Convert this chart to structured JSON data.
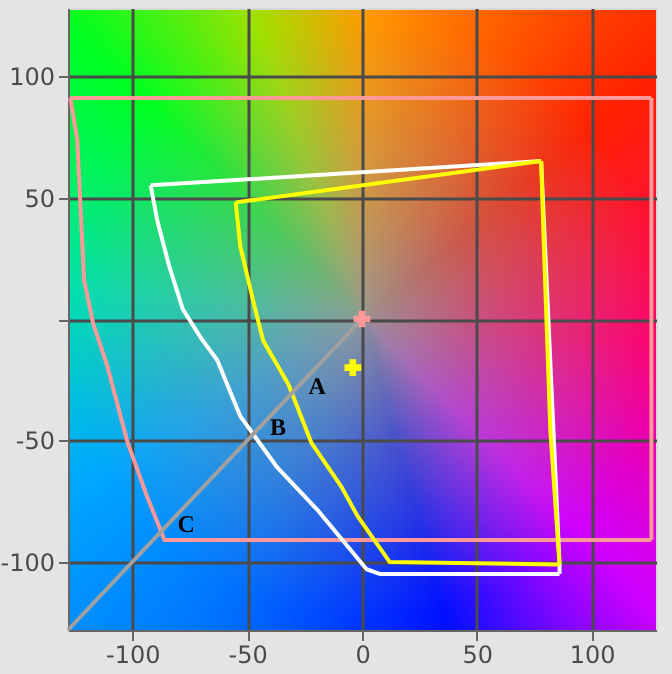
{
  "chart_data": {
    "type": "line",
    "xlim": [
      -128,
      128
    ],
    "ylim": [
      -128,
      128
    ],
    "xticks": [
      -100,
      -50,
      0,
      50,
      100
    ],
    "yticks": [
      -100,
      -50,
      {
        "value": 0,
        "label": null
      },
      50,
      100
    ],
    "grid": true,
    "series": [
      {
        "color": "#ff9999",
        "x": [
          -127,
          -124,
          -121,
          -117,
          -111,
          -102,
          -94,
          -86,
          126
        ],
        "values": [
          91,
          74,
          16,
          -2,
          -19,
          -51,
          -72,
          -91,
          -91
        ]
      },
      {
        "color": "#ff9999",
        "x": [
          126,
          126
        ],
        "values": [
          -91,
          91
        ]
      },
      {
        "color": "#ff9999",
        "x": [
          -127,
          126
        ],
        "values": [
          91,
          91
        ]
      },
      {
        "color": "#ffffff",
        "x": [
          -92,
          -89,
          -84,
          -78,
          -70,
          -63,
          -53,
          -37,
          -19,
          2,
          8,
          86
        ],
        "values": [
          55,
          40,
          22,
          4,
          -8,
          -17,
          -40,
          -61,
          -79,
          -103,
          -105,
          -105
        ]
      },
      {
        "color": "#ffffff",
        "x": [
          78,
          86,
          86
        ],
        "values": [
          65,
          -101,
          -105
        ]
      },
      {
        "color": "#ffffff",
        "x": [
          -92,
          78
        ],
        "values": [
          55,
          65
        ]
      },
      {
        "color": "#ffff00",
        "x": [
          -55,
          -53,
          -47,
          -43,
          -32,
          -22,
          -9,
          -2,
          12,
          86
        ],
        "values": [
          48,
          30,
          6,
          -9,
          -27,
          -51,
          -69,
          -81,
          -100,
          -101
        ]
      },
      {
        "color": "#ffff00",
        "x": [
          78,
          79,
          82,
          86
        ],
        "values": [
          65,
          35,
          -46,
          -101
        ]
      },
      {
        "color": "#ffff00",
        "x": [
          -55,
          78
        ],
        "values": [
          48,
          65
        ]
      },
      {
        "color": "#a0a0a0",
        "x": [
          0,
          -128
        ],
        "values": [
          0,
          -128
        ]
      },
      {
        "type": "scatter",
        "marker": "cross",
        "color": "#ffff00",
        "x": [
          -4
        ],
        "values": [
          -20
        ]
      },
      {
        "type": "scatter",
        "marker": "cross",
        "color": "#ff9999",
        "x": [
          0
        ],
        "values": [
          0
        ]
      }
    ],
    "annotations": [
      {
        "text": "A",
        "x": -30,
        "y": -30
      },
      {
        "text": "B",
        "x": -47,
        "y": -47
      },
      {
        "text": "C",
        "x": -87,
        "y": -87
      }
    ]
  }
}
